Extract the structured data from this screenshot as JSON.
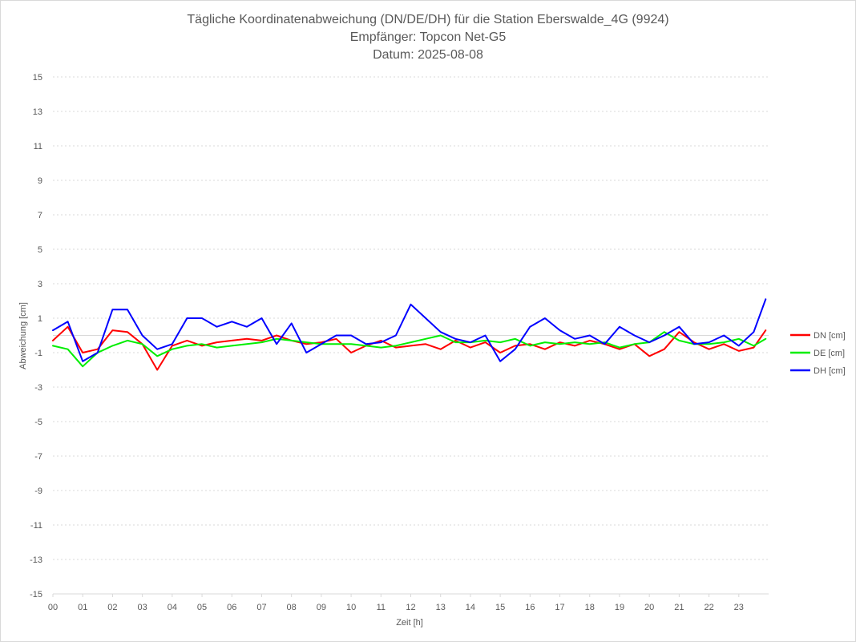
{
  "chart_data": {
    "type": "line",
    "title_lines": [
      "Tägliche Koordinatenabweichung (DN/DE/DH) für die Station Eberswalde_4G (9924)",
      "Empfänger: Topcon Net-G5",
      "Datum: 2025-08-08"
    ],
    "xlabel": "Zeit [h]",
    "ylabel": "Abweichung [cm]",
    "xlim": [
      0,
      24
    ],
    "ylim": [
      -15,
      15
    ],
    "x_ticks": [
      "00",
      "01",
      "02",
      "03",
      "04",
      "05",
      "06",
      "07",
      "08",
      "09",
      "10",
      "11",
      "12",
      "13",
      "14",
      "15",
      "16",
      "17",
      "18",
      "19",
      "20",
      "21",
      "22",
      "23"
    ],
    "y_ticks": [
      15,
      13,
      11,
      9,
      7,
      5,
      3,
      1,
      -1,
      -3,
      -5,
      -7,
      -9,
      -11,
      -13,
      -15
    ],
    "grid": true,
    "legend_position": "right",
    "x_hours": [
      0,
      0.5,
      1,
      1.5,
      2,
      2.5,
      3,
      3.5,
      4,
      4.5,
      5,
      5.5,
      6,
      6.5,
      7,
      7.5,
      8,
      8.5,
      9,
      9.5,
      10,
      10.5,
      11,
      11.5,
      12,
      12.5,
      13,
      13.5,
      14,
      14.5,
      15,
      15.5,
      16,
      16.5,
      17,
      17.5,
      18,
      18.5,
      19,
      19.5,
      20,
      20.5,
      21,
      21.5,
      22,
      22.5,
      23,
      23.5,
      23.9
    ],
    "series": [
      {
        "name": "DN [cm]",
        "color": "#ff0000",
        "values": [
          -0.3,
          0.5,
          -1.0,
          -0.8,
          0.3,
          0.2,
          -0.5,
          -2.0,
          -0.6,
          -0.3,
          -0.6,
          -0.4,
          -0.3,
          -0.2,
          -0.3,
          0.0,
          -0.3,
          -0.5,
          -0.4,
          -0.2,
          -1.0,
          -0.6,
          -0.3,
          -0.7,
          -0.6,
          -0.5,
          -0.8,
          -0.3,
          -0.7,
          -0.4,
          -1.0,
          -0.6,
          -0.5,
          -0.8,
          -0.4,
          -0.6,
          -0.3,
          -0.5,
          -0.8,
          -0.5,
          -1.2,
          -0.8,
          0.2,
          -0.4,
          -0.8,
          -0.5,
          -0.9,
          -0.7,
          0.3
        ]
      },
      {
        "name": "DE [cm]",
        "color": "#00ee00",
        "values": [
          -0.6,
          -0.8,
          -1.8,
          -1.0,
          -0.6,
          -0.3,
          -0.5,
          -1.2,
          -0.8,
          -0.6,
          -0.5,
          -0.7,
          -0.6,
          -0.5,
          -0.4,
          -0.2,
          -0.3,
          -0.4,
          -0.5,
          -0.5,
          -0.5,
          -0.6,
          -0.7,
          -0.6,
          -0.4,
          -0.2,
          0.0,
          -0.4,
          -0.4,
          -0.3,
          -0.4,
          -0.2,
          -0.6,
          -0.4,
          -0.5,
          -0.4,
          -0.5,
          -0.4,
          -0.7,
          -0.5,
          -0.4,
          0.2,
          -0.3,
          -0.5,
          -0.5,
          -0.4,
          -0.2,
          -0.6,
          -0.2
        ]
      },
      {
        "name": "DH [cm]",
        "color": "#0000ff",
        "values": [
          0.3,
          0.8,
          -1.5,
          -1.0,
          1.5,
          1.5,
          0.0,
          -0.8,
          -0.5,
          1.0,
          1.0,
          0.5,
          0.8,
          0.5,
          1.0,
          -0.5,
          0.7,
          -1.0,
          -0.5,
          0.0,
          0.0,
          -0.5,
          -0.4,
          0.0,
          1.8,
          1.0,
          0.2,
          -0.2,
          -0.4,
          0.0,
          -1.5,
          -0.8,
          0.5,
          1.0,
          0.3,
          -0.2,
          0.0,
          -0.5,
          0.5,
          0.0,
          -0.4,
          0.0,
          0.5,
          -0.5,
          -0.4,
          0.0,
          -0.6,
          0.2,
          2.1
        ]
      }
    ]
  }
}
